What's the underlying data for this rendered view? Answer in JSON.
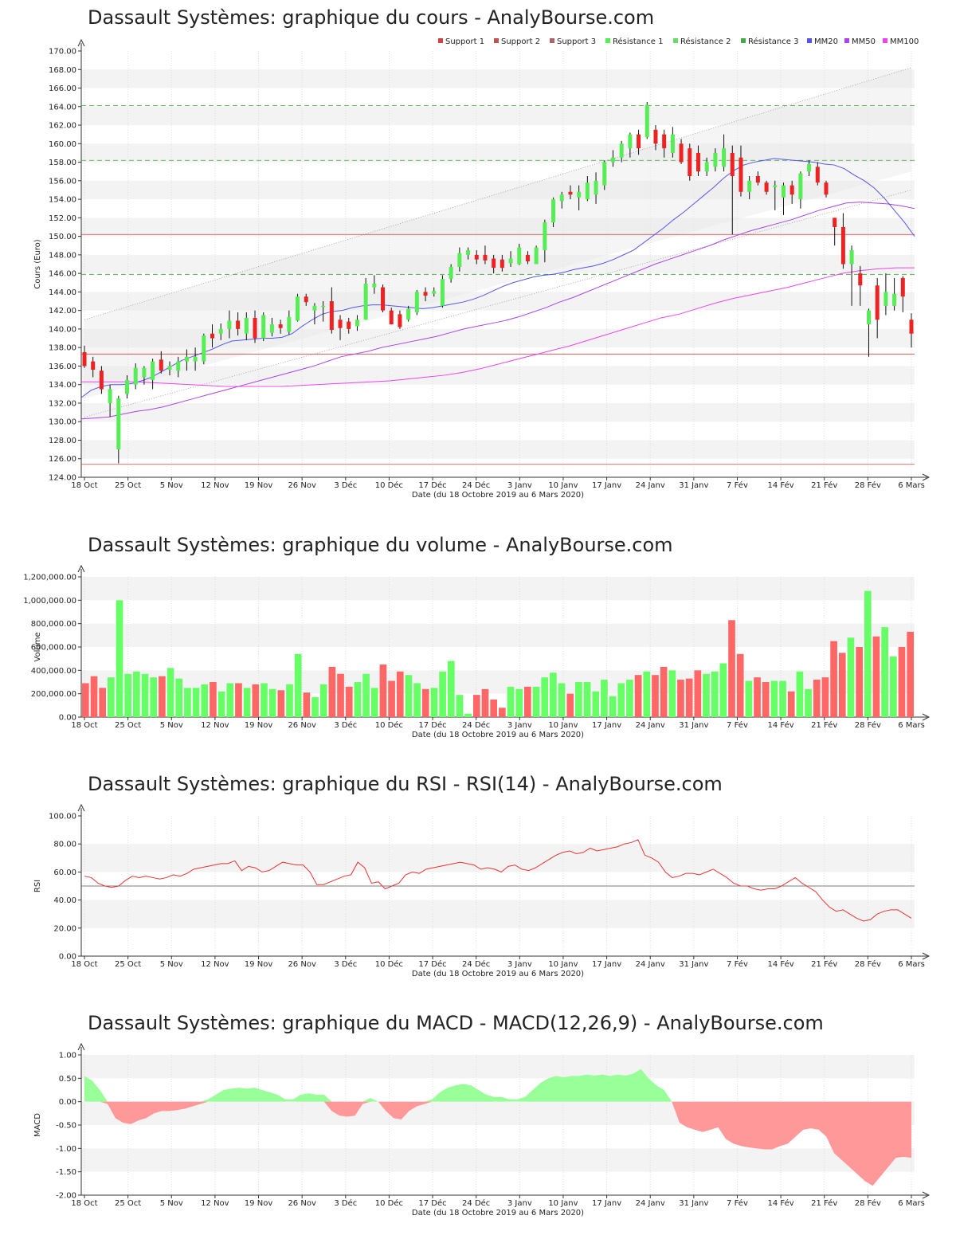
{
  "x_tick_labels": [
    "18 Oct",
    "25 Oct",
    "5 Nov",
    "12 Nov",
    "19 Nov",
    "26 Nov",
    "3 Déc",
    "10 Déc",
    "17 Déc",
    "24 Déc",
    "3 Janv",
    "10 Janv",
    "17 Janv",
    "24 Janv",
    "31 Janv",
    "7 Fév",
    "14 Fév",
    "21 Fév",
    "28 Fév",
    "6 Mars"
  ],
  "xlabel": "Date (du 18 Octobre 2019 au 6 Mars 2020)",
  "colors": {
    "up": "#55ee55",
    "down": "#ee2222",
    "vol_up": "#66ff66",
    "vol_down": "#ff6666",
    "support": "#cc4444",
    "resist": "#33aa33",
    "mm20": "#5555ee",
    "mm50": "#aa44ee",
    "mm100": "#ee44ee",
    "rsi": "#ee3333",
    "macd_pos": "#99ff99",
    "macd_neg": "#ff9999"
  },
  "chart_data": [
    {
      "type": "candlestick",
      "title": "Dassault Systèmes: graphique du cours - AnalyBourse.com",
      "ylabel": "Cours (Euro)",
      "ylim": [
        124,
        170
      ],
      "yticks": [
        "124.00",
        "126.00",
        "128.00",
        "130.00",
        "132.00",
        "134.00",
        "136.00",
        "138.00",
        "140.00",
        "142.00",
        "144.00",
        "146.00",
        "148.00",
        "150.00",
        "152.00",
        "154.00",
        "156.00",
        "158.00",
        "160.00",
        "162.00",
        "164.00",
        "166.00",
        "168.00",
        "170.00"
      ],
      "legend": [
        "Support 1",
        "Support 2",
        "Support 3",
        "Résistance 1",
        "Résistance 2",
        "Résistance 3",
        "MM20",
        "MM50",
        "MM100"
      ],
      "supports": [
        137.3,
        125.4
      ],
      "resistances": [
        145.9,
        158.2,
        164.1
      ],
      "extra_level": 150.2,
      "candles": [
        [
          137.5,
          136.0,
          138.2,
          135.8
        ],
        [
          136.5,
          135.6,
          137.0,
          134.8
        ],
        [
          135.5,
          133.5,
          136.0,
          133.0
        ],
        [
          132.0,
          133.5,
          134.0,
          130.5
        ],
        [
          127.0,
          132.5,
          132.8,
          125.5
        ],
        [
          133.0,
          134.5,
          135.0,
          132.5
        ],
        [
          134.0,
          135.8,
          136.3,
          133.5
        ],
        [
          134.8,
          135.8,
          136.0,
          134.0
        ],
        [
          134.5,
          136.5,
          136.8,
          133.5
        ],
        [
          136.7,
          135.5,
          137.6,
          135.2
        ],
        [
          135.6,
          136.0,
          136.5,
          135.0
        ],
        [
          135.5,
          136.5,
          137.0,
          134.8
        ],
        [
          136.5,
          137.0,
          137.8,
          135.5
        ],
        [
          136.5,
          137.0,
          138.0,
          135.5
        ],
        [
          136.5,
          139.3,
          139.5,
          136.2
        ],
        [
          139.5,
          139.0,
          140.5,
          138.0
        ],
        [
          139.5,
          140.0,
          140.6,
          138.8
        ],
        [
          140.0,
          140.9,
          142.0,
          139.0
        ],
        [
          140.9,
          140.0,
          141.8,
          139.3
        ],
        [
          139.5,
          141.2,
          141.8,
          138.8
        ],
        [
          141.2,
          139.0,
          142.0,
          138.5
        ],
        [
          139.0,
          141.5,
          141.8,
          138.7
        ],
        [
          139.6,
          140.5,
          141.2,
          139.2
        ],
        [
          140.5,
          140.1,
          141.0,
          139.5
        ],
        [
          139.7,
          141.3,
          142.0,
          139.4
        ],
        [
          140.9,
          143.5,
          143.8,
          140.8
        ],
        [
          143.5,
          142.9,
          143.8,
          142.5
        ],
        [
          142.0,
          142.5,
          142.8,
          140.5
        ],
        [
          142.5,
          142.5,
          143.0,
          140.8
        ],
        [
          143.0,
          139.9,
          144.5,
          139.5
        ],
        [
          141.0,
          140.1,
          141.5,
          138.8
        ],
        [
          140.8,
          140.0,
          141.2,
          139.5
        ],
        [
          140.3,
          141.0,
          141.5,
          139.8
        ],
        [
          141.0,
          144.9,
          145.5,
          141.0
        ],
        [
          144.5,
          144.9,
          145.8,
          143.8
        ],
        [
          144.5,
          142.0,
          144.8,
          141.8
        ],
        [
          142.0,
          140.5,
          142.3,
          140.5
        ],
        [
          141.6,
          140.2,
          142.0,
          140.0
        ],
        [
          141.0,
          142.2,
          142.5,
          140.8
        ],
        [
          141.8,
          144.0,
          144.2,
          141.5
        ],
        [
          144.0,
          143.6,
          144.5,
          143.0
        ],
        [
          143.8,
          144.1,
          144.5,
          143.5
        ],
        [
          142.5,
          145.4,
          145.8,
          142.3
        ],
        [
          145.4,
          146.7,
          147.0,
          145.0
        ],
        [
          146.7,
          148.2,
          148.8,
          146.2
        ],
        [
          148.0,
          148.5,
          148.8,
          147.5
        ],
        [
          148.0,
          147.5,
          148.5,
          147.0
        ],
        [
          148.0,
          147.4,
          149.0,
          147.0
        ],
        [
          147.6,
          146.6,
          148.0,
          146.0
        ],
        [
          147.5,
          146.6,
          148.0,
          146.2
        ],
        [
          147.1,
          147.6,
          148.4,
          146.7
        ],
        [
          147.0,
          148.8,
          149.2,
          146.9
        ],
        [
          148.0,
          147.3,
          148.4,
          147.0
        ],
        [
          147.0,
          148.8,
          149.0,
          147.0
        ],
        [
          148.5,
          151.5,
          151.8,
          147.2
        ],
        [
          151.5,
          154.0,
          154.2,
          151.0
        ],
        [
          153.8,
          154.5,
          154.8,
          153.0
        ],
        [
          154.8,
          154.5,
          155.5,
          154.0
        ],
        [
          154.2,
          154.8,
          155.5,
          152.8
        ],
        [
          154.0,
          155.8,
          156.5,
          153.8
        ],
        [
          154.5,
          156.0,
          156.9,
          153.5
        ],
        [
          155.5,
          158.0,
          158.2,
          155.0
        ],
        [
          158.0,
          158.5,
          159.3,
          157.5
        ],
        [
          158.5,
          160.0,
          160.3,
          158.0
        ],
        [
          159.5,
          161.0,
          161.2,
          158.5
        ],
        [
          161.0,
          159.5,
          161.5,
          158.8
        ],
        [
          160.7,
          164.2,
          164.5,
          160.5
        ],
        [
          161.5,
          160.0,
          162.0,
          159.3
        ],
        [
          161.0,
          159.5,
          161.5,
          158.5
        ],
        [
          159.0,
          161.0,
          161.8,
          158.5
        ],
        [
          160.0,
          158.0,
          160.5,
          157.8
        ],
        [
          159.5,
          156.5,
          160.0,
          156.0
        ],
        [
          159.0,
          157.0,
          159.8,
          156.5
        ],
        [
          157.0,
          158.0,
          158.5,
          156.5
        ],
        [
          157.5,
          159.0,
          159.5,
          157.0
        ],
        [
          157.5,
          159.5,
          161.0,
          157.0
        ],
        [
          159.0,
          156.5,
          159.8,
          150.2
        ],
        [
          158.5,
          154.8,
          159.8,
          154.3
        ],
        [
          154.8,
          156.0,
          156.5,
          154.0
        ],
        [
          156.5,
          155.8,
          157.0,
          155.5
        ],
        [
          155.8,
          154.8,
          156.0,
          154.5
        ],
        [
          155.3,
          155.5,
          156.0,
          152.8
        ],
        [
          154.2,
          155.5,
          155.8,
          152.3
        ],
        [
          155.5,
          154.5,
          156.0,
          153.5
        ],
        [
          154.0,
          156.8,
          157.0,
          153.0
        ],
        [
          157.0,
          157.8,
          158.2,
          156.5
        ],
        [
          157.5,
          155.8,
          158.0,
          155.5
        ],
        [
          155.8,
          154.5,
          156.0,
          154.2
        ],
        [
          152.0,
          151.0,
          152.0,
          149.0
        ],
        [
          151.0,
          147.0,
          152.5,
          146.5
        ],
        [
          147.0,
          148.5,
          149.0,
          142.5
        ],
        [
          146.0,
          144.7,
          146.8,
          142.5
        ],
        [
          140.5,
          142.0,
          142.2,
          137.0
        ],
        [
          144.7,
          141.0,
          145.5,
          139.0
        ],
        [
          142.5,
          144.0,
          146.0,
          141.5
        ],
        [
          142.5,
          143.8,
          145.5,
          142.0
        ],
        [
          145.5,
          143.5,
          145.7,
          141.8
        ],
        [
          141.0,
          139.5,
          141.7,
          138.0
        ]
      ],
      "mm20": [
        132.6,
        133.4,
        133.8,
        134.0,
        134.0,
        134.1,
        134.4,
        134.8,
        135.4,
        136.0,
        136.6,
        137.0,
        137.4,
        137.8,
        138.3,
        138.7,
        138.8,
        138.9,
        139.0,
        139.0,
        139.1,
        139.5,
        140.3,
        141.0,
        141.6,
        141.9,
        142.0,
        142.3,
        142.5,
        142.6,
        142.6,
        142.5,
        142.4,
        142.3,
        142.2,
        142.3,
        142.5,
        142.7,
        142.9,
        143.2,
        143.6,
        144.1,
        144.6,
        145.0,
        145.3,
        145.6,
        145.8,
        145.9,
        146.1,
        146.4,
        146.6,
        146.8,
        147.1,
        147.5,
        148.0,
        148.5,
        149.3,
        150.1,
        150.9,
        151.8,
        152.6,
        153.5,
        154.4,
        155.3,
        156.3,
        157.1,
        157.7,
        158.0,
        158.2,
        158.4,
        158.3,
        158.2,
        158.1,
        158.0,
        157.8,
        157.7,
        157.3,
        156.6,
        156.0,
        155.2,
        154.1,
        152.8,
        151.5,
        150.0
      ],
      "mm50": [
        130.3,
        130.4,
        130.5,
        130.8,
        131.1,
        131.3,
        131.6,
        132.0,
        132.4,
        132.8,
        133.2,
        133.6,
        134.0,
        134.4,
        134.8,
        135.2,
        135.6,
        136.0,
        136.5,
        137.0,
        137.3,
        137.6,
        138.0,
        138.3,
        138.6,
        138.9,
        139.2,
        139.6,
        140.0,
        140.3,
        140.6,
        140.9,
        141.3,
        141.8,
        142.3,
        142.9,
        143.4,
        144.0,
        144.6,
        145.2,
        145.8,
        146.4,
        147.0,
        147.5,
        148.0,
        148.5,
        149.0,
        149.6,
        150.1,
        150.6,
        151.0,
        151.4,
        151.8,
        152.3,
        152.8,
        153.2,
        153.6,
        153.7,
        153.6,
        153.5,
        153.3,
        153.0
      ],
      "mm100": [
        134.3,
        134.3,
        134.3,
        134.3,
        134.2,
        134.1,
        134.0,
        133.9,
        133.8,
        133.8,
        133.8,
        133.8,
        133.9,
        134.0,
        134.1,
        134.2,
        134.3,
        134.4,
        134.6,
        134.8,
        135.0,
        135.3,
        135.7,
        136.2,
        136.7,
        137.2,
        137.7,
        138.2,
        138.8,
        139.4,
        140.0,
        140.6,
        141.2,
        141.6,
        142.2,
        142.8,
        143.3,
        143.7,
        144.1,
        144.5,
        145.0,
        145.5,
        146.0,
        146.3,
        146.5,
        146.6,
        146.6
      ]
    },
    {
      "type": "bar",
      "title": "Dassault Systèmes: graphique du volume - AnalyBourse.com",
      "ylabel": "Volume",
      "ylim": [
        0,
        1200000
      ],
      "yticks": [
        "0.00",
        "200,000.00",
        "400,000.00",
        "600,000.00",
        "800,000.00",
        "1,000,000.00",
        "1,200,000.00"
      ],
      "values": [
        290000,
        350000,
        250000,
        340000,
        1000000,
        370000,
        390000,
        370000,
        340000,
        350000,
        420000,
        330000,
        250000,
        250000,
        280000,
        300000,
        220000,
        290000,
        290000,
        250000,
        280000,
        290000,
        240000,
        230000,
        280000,
        540000,
        210000,
        170000,
        280000,
        430000,
        370000,
        260000,
        300000,
        370000,
        250000,
        450000,
        310000,
        390000,
        360000,
        290000,
        240000,
        250000,
        390000,
        480000,
        190000,
        30000,
        190000,
        240000,
        150000,
        80000,
        260000,
        240000,
        260000,
        260000,
        340000,
        380000,
        290000,
        200000,
        300000,
        300000,
        220000,
        320000,
        180000,
        290000,
        320000,
        360000,
        390000,
        360000,
        430000,
        400000,
        320000,
        330000,
        400000,
        370000,
        390000,
        460000,
        830000,
        540000,
        310000,
        340000,
        300000,
        310000,
        310000,
        220000,
        390000,
        240000,
        320000,
        340000,
        650000,
        550000,
        680000,
        600000,
        1080000,
        690000,
        770000,
        520000,
        600000,
        730000
      ]
    },
    {
      "type": "line",
      "title": "Dassault Systèmes: graphique du RSI - RSI(14) - AnalyBourse.com",
      "ylabel": "RSI",
      "ylim": [
        0,
        100
      ],
      "yticks": [
        "0.00",
        "20.00",
        "40.00",
        "60.00",
        "80.00",
        "100.00"
      ],
      "reference": 50,
      "values": [
        57,
        56,
        52,
        50,
        49,
        50,
        54,
        57,
        56,
        57,
        56,
        55,
        56,
        58,
        57,
        59,
        62,
        63,
        64,
        65,
        66,
        66,
        68,
        61,
        64,
        63,
        60,
        61,
        64,
        67,
        66,
        65,
        65,
        60,
        51,
        51,
        53,
        55,
        57,
        58,
        67,
        63,
        52,
        53,
        48,
        50,
        52,
        58,
        60,
        59,
        62,
        63,
        64,
        65,
        66,
        67,
        66,
        65,
        62,
        63,
        62,
        60,
        64,
        65,
        62,
        61,
        63,
        66,
        69,
        72,
        74,
        75,
        73,
        74,
        77,
        75,
        76,
        77,
        78,
        80,
        81,
        83,
        72,
        70,
        67,
        60,
        56,
        57,
        59,
        59,
        58,
        60,
        62,
        59,
        56,
        52,
        50,
        50,
        48,
        47,
        48,
        48,
        50,
        53,
        56,
        52,
        49,
        46,
        40,
        35,
        32,
        33,
        30,
        27,
        25,
        26,
        30,
        32,
        33,
        33,
        30,
        27
      ]
    },
    {
      "type": "area",
      "title": "Dassault Systèmes: graphique du MACD - MACD(12,26,9) - AnalyBourse.com",
      "ylabel": "MACD",
      "ylim": [
        -2,
        1
      ],
      "yticks": [
        "-2.00",
        "-1.50",
        "-1.00",
        "-0.50",
        "0.00",
        "0.50",
        "1.00"
      ],
      "values": [
        0.55,
        0.45,
        0.25,
        -0.05,
        -0.35,
        -0.45,
        -0.48,
        -0.4,
        -0.35,
        -0.25,
        -0.2,
        -0.2,
        -0.18,
        -0.15,
        -0.1,
        -0.05,
        0.05,
        0.15,
        0.25,
        0.28,
        0.3,
        0.28,
        0.3,
        0.25,
        0.2,
        0.15,
        0.05,
        0.05,
        0.15,
        0.18,
        0.15,
        0.15,
        -0.2,
        -0.3,
        -0.32,
        -0.3,
        -0.05,
        0.08,
        0.0,
        -0.2,
        -0.35,
        -0.38,
        -0.2,
        -0.1,
        -0.05,
        0.05,
        0.2,
        0.3,
        0.35,
        0.38,
        0.35,
        0.25,
        0.15,
        0.1,
        0.1,
        0.05,
        0.05,
        0.1,
        0.25,
        0.4,
        0.5,
        0.55,
        0.52,
        0.55,
        0.55,
        0.58,
        0.56,
        0.58,
        0.55,
        0.58,
        0.56,
        0.6,
        0.7,
        0.5,
        0.35,
        0.25,
        0.0,
        -0.45,
        -0.55,
        -0.6,
        -0.65,
        -0.6,
        -0.55,
        -0.8,
        -0.9,
        -0.95,
        -0.98,
        -1.0,
        -1.02,
        -1.02,
        -0.95,
        -0.9,
        -0.75,
        -0.6,
        -0.57,
        -0.6,
        -0.75,
        -1.1,
        -1.25,
        -1.4,
        -1.55,
        -1.7,
        -1.8,
        -1.6,
        -1.4,
        -1.2,
        -1.18,
        -1.2
      ]
    }
  ]
}
